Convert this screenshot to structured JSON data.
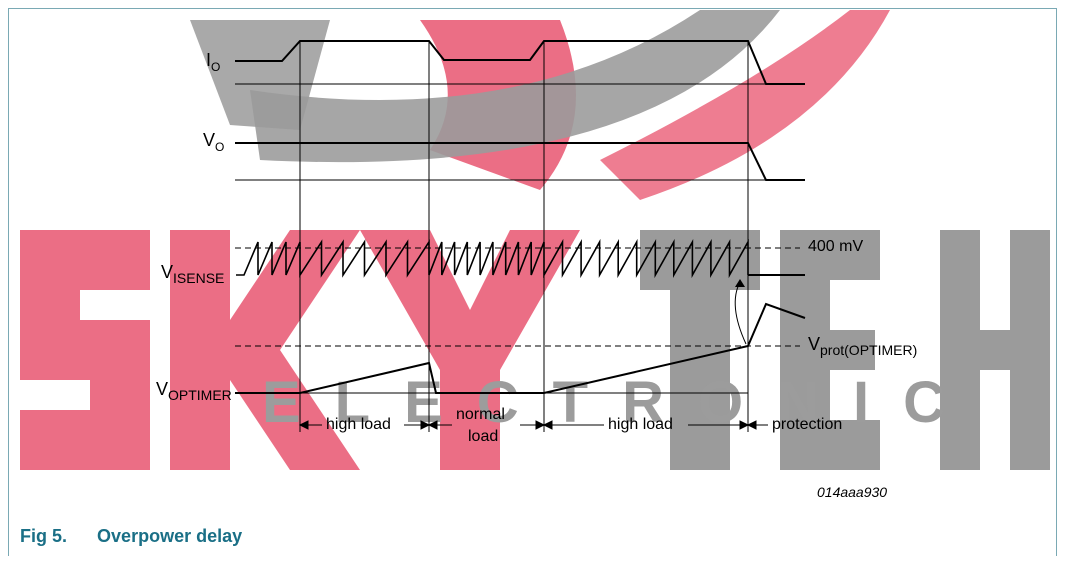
{
  "signals": {
    "io": {
      "main": "I",
      "sub": "O"
    },
    "vo": {
      "main": "V",
      "sub": "O"
    },
    "visense": {
      "main": "V",
      "sub": "ISENSE"
    },
    "voptimer": {
      "main": "V",
      "sub": "OPTIMER"
    }
  },
  "annotations": {
    "threshold_400": "400 mV",
    "vprot": {
      "main": "V",
      "sub": "prot(OPTIMER)"
    }
  },
  "phases": {
    "high_load_1": "high load",
    "normal_line1": "normal",
    "normal_line2": "load",
    "high_load_2": "high load",
    "protection": "protection"
  },
  "figure_code": "014aaa930",
  "caption": {
    "number": "Fig 5.",
    "title": "Overpower delay"
  },
  "watermark": {
    "line1": "SKYTECH",
    "line2": "ELECTRONIC"
  },
  "colors": {
    "caption": "#1a6f86",
    "frame": "#7aa9b4",
    "watermark_red": "#e8546f",
    "watermark_gray": "#8a8a8a"
  }
}
